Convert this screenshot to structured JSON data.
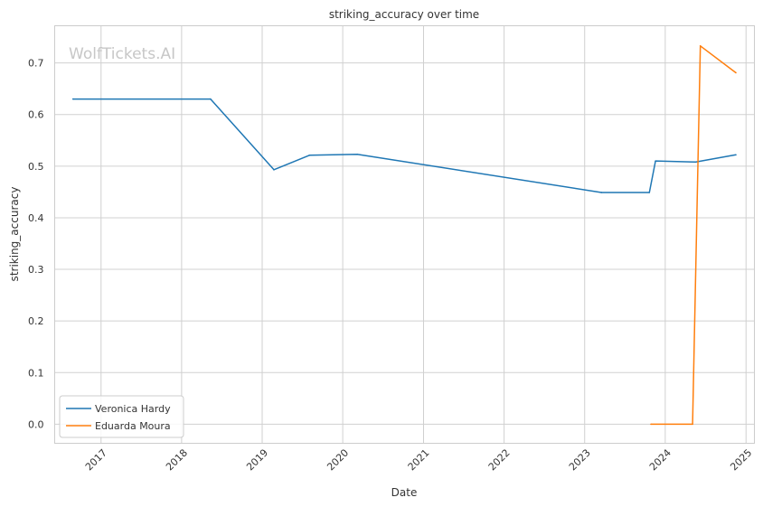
{
  "chart_data": {
    "type": "line",
    "title": "striking_accuracy over time",
    "xlabel": "Date",
    "ylabel": "striking_accuracy",
    "watermark": "WolfTickets.AI",
    "x_ticks": [
      "2017",
      "2018",
      "2019",
      "2020",
      "2021",
      "2022",
      "2023",
      "2024",
      "2025"
    ],
    "y_ticks": [
      "0.0",
      "0.1",
      "0.2",
      "0.3",
      "0.4",
      "0.5",
      "0.6",
      "0.7"
    ],
    "x_range": [
      "2016-06-05",
      "2025-02-08"
    ],
    "ylim": [
      -0.037,
      0.772
    ],
    "grid": true,
    "legend_position": "lower-left",
    "series": [
      {
        "name": "Veronica Hardy",
        "color": "#1f77b4",
        "points": [
          {
            "x": "2016-08-27",
            "y": 0.63
          },
          {
            "x": "2018-05-12",
            "y": 0.63
          },
          {
            "x": "2019-02-23",
            "y": 0.493
          },
          {
            "x": "2019-08-03",
            "y": 0.521
          },
          {
            "x": "2020-03-07",
            "y": 0.523
          },
          {
            "x": "2023-03-18",
            "y": 0.449
          },
          {
            "x": "2023-10-21",
            "y": 0.449
          },
          {
            "x": "2023-11-18",
            "y": 0.51
          },
          {
            "x": "2024-05-18",
            "y": 0.508
          },
          {
            "x": "2024-11-16",
            "y": 0.522
          }
        ]
      },
      {
        "name": "Eduarda Moura",
        "color": "#ff7f0e",
        "points": [
          {
            "x": "2023-10-28",
            "y": 0.0
          },
          {
            "x": "2024-05-04",
            "y": 0.0
          },
          {
            "x": "2024-06-08",
            "y": 0.733
          },
          {
            "x": "2024-11-16",
            "y": 0.681
          }
        ]
      }
    ]
  }
}
